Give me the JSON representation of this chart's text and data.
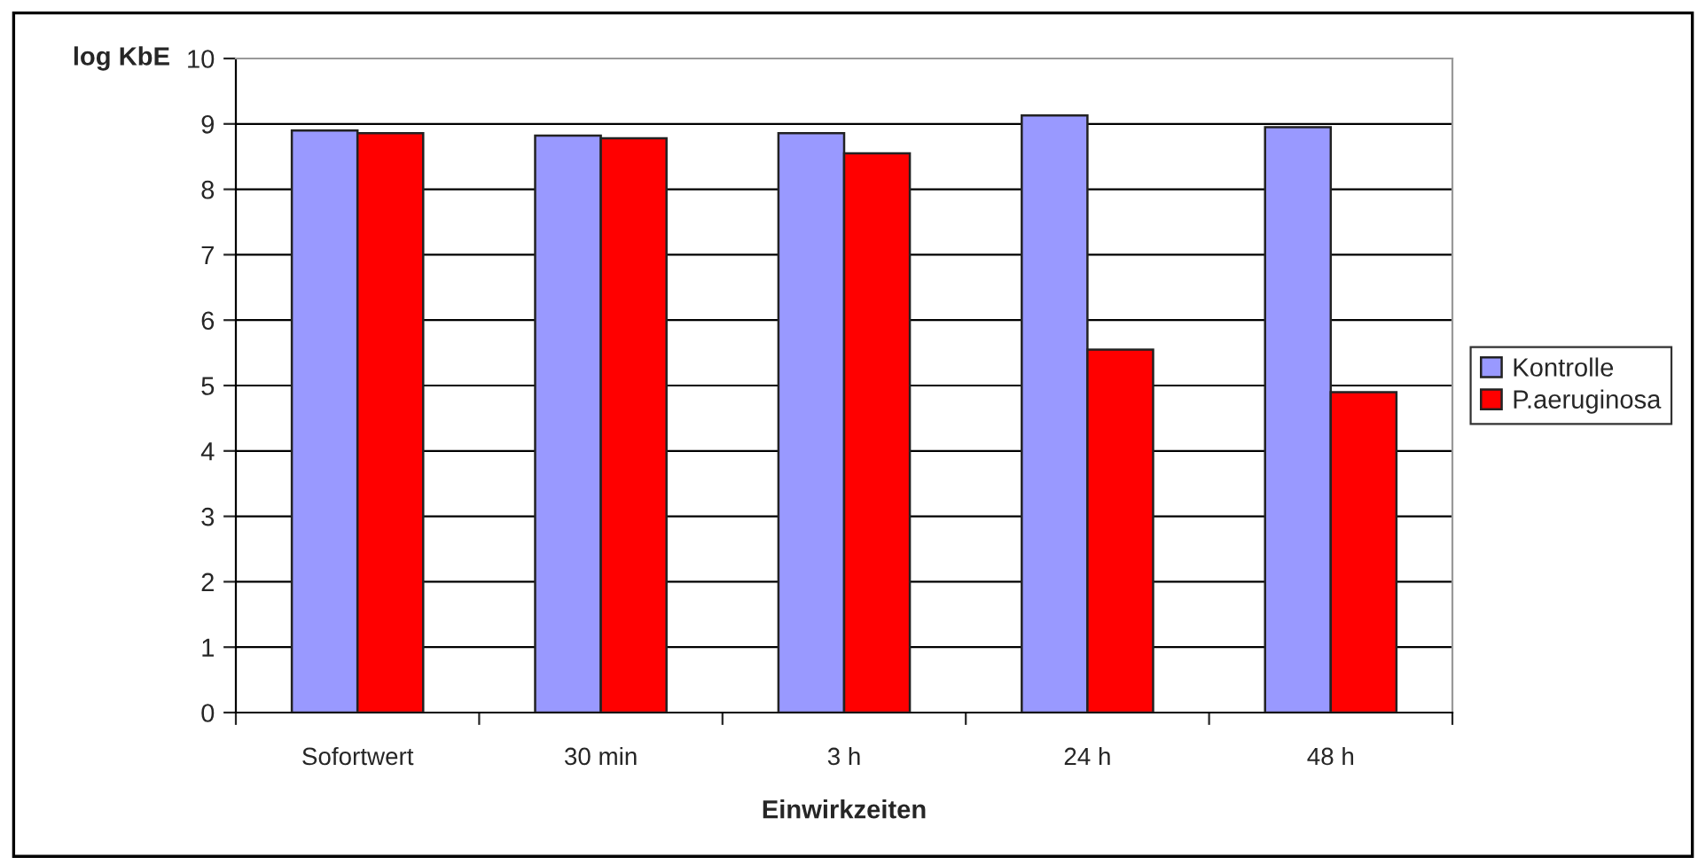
{
  "chart_data": {
    "type": "bar",
    "xlabel": "Einwirkzeiten",
    "ylabel": "log KbE",
    "categories": [
      "Sofortwert",
      "30 min",
      "3 h",
      "24 h",
      "48 h"
    ],
    "series": [
      {
        "name": "Kontrolle",
        "color": "#9999ff",
        "values": [
          8.9,
          8.82,
          8.86,
          9.13,
          8.95
        ]
      },
      {
        "name": "P.aeruginosa",
        "color": "#ff0000",
        "values": [
          8.86,
          8.78,
          8.55,
          5.55,
          4.9
        ]
      }
    ],
    "ylim": [
      0,
      10
    ],
    "yticks": [
      0,
      1,
      2,
      3,
      4,
      5,
      6,
      7,
      8,
      9,
      10
    ],
    "grid": "y",
    "legend": "right"
  }
}
